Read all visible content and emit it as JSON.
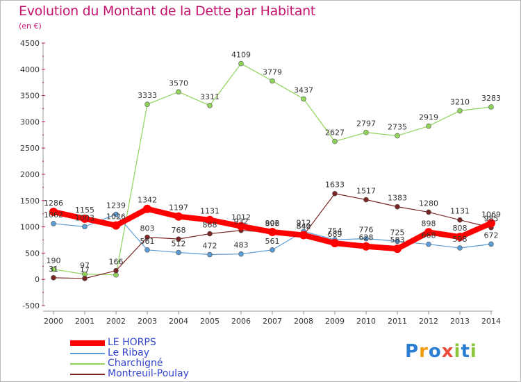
{
  "header": {
    "title": "Evolution du Montant de la Dette par Habitant",
    "subtitle": "(en €)"
  },
  "logo": {
    "text": "Proxiti"
  },
  "chart_data": {
    "type": "line",
    "categories": [
      "2000",
      "2001",
      "2002",
      "2003",
      "2004",
      "2005",
      "2006",
      "2007",
      "2008",
      "2009",
      "2010",
      "2011",
      "2012",
      "2013",
      "2014"
    ],
    "ylim": [
      -500,
      4500
    ],
    "yticks": [
      -500,
      0,
      500,
      1000,
      1500,
      2000,
      2500,
      3000,
      3500,
      4000,
      4500
    ],
    "grid": false,
    "legend_position": "bottom-left",
    "series": [
      {
        "name": "LE HORPS",
        "color": "#ff0000",
        "values": [
          1286,
          1155,
          1026,
          1342,
          1197,
          1131,
          1012,
          902,
          842,
          689,
          628,
          583,
          898,
          808,
          1069
        ],
        "labels": [
          "1286",
          "1155",
          "1026",
          "1342",
          "1197",
          "1131",
          "1012",
          "902",
          "842",
          "689",
          "628",
          "583",
          "898",
          "808",
          "1069"
        ]
      },
      {
        "name": "Le Ribay",
        "color": "#5b9bd5",
        "values": [
          1062,
          1003,
          1239,
          561,
          512,
          472,
          483,
          561,
          912,
          754,
          776,
          725,
          668,
          598,
          672
        ],
        "labels": [
          "1062",
          "1003",
          "1239",
          "561",
          "512",
          "472",
          "483",
          "561",
          "912",
          "754",
          "776",
          "725",
          "668",
          "598",
          "672"
        ]
      },
      {
        "name": "Charchigné",
        "color": "#8fd35a",
        "values": [
          190,
          97,
          86,
          3333,
          3570,
          3311,
          4109,
          3779,
          3437,
          2627,
          2797,
          2735,
          2919,
          3210,
          3283
        ],
        "labels": [
          "190",
          "97",
          "",
          "3333",
          "3570",
          "3311",
          "4109",
          "3779",
          "3437",
          "2627",
          "2797",
          "2735",
          "2919",
          "3210",
          "3283"
        ]
      },
      {
        "name": "Montreuil-Poulay",
        "color": "#7a2525",
        "values": [
          31,
          17,
          166,
          803,
          768,
          868,
          932,
          896,
          840,
          1633,
          1517,
          1383,
          1280,
          1131,
          985
        ],
        "labels": [
          "31",
          "17",
          "166",
          "803",
          "768",
          "868",
          "932",
          "896",
          "840",
          "1633",
          "1517",
          "1383",
          "1280",
          "1131",
          "985"
        ]
      }
    ]
  }
}
